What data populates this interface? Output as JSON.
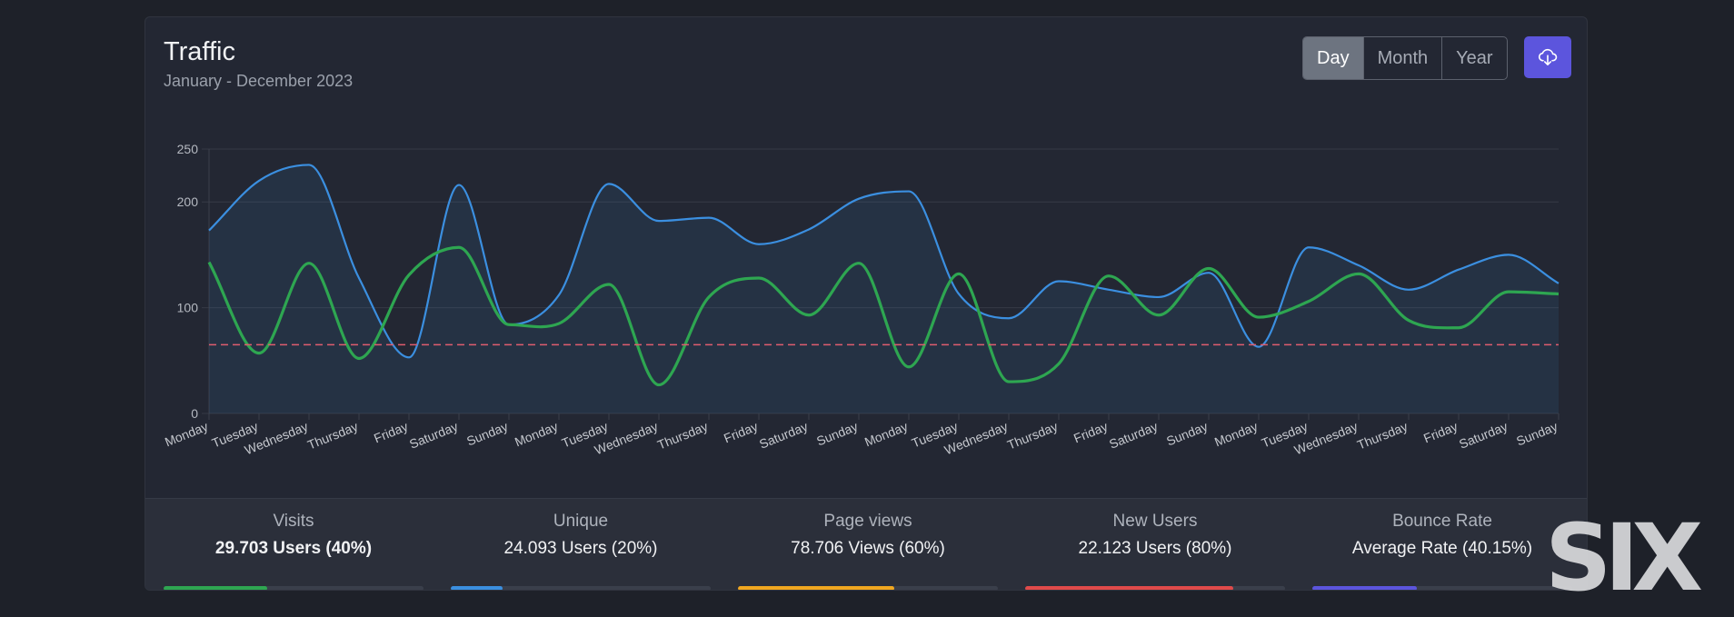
{
  "card": {
    "title": "Traffic",
    "subtitle": "January - December 2023"
  },
  "period_buttons": [
    {
      "label": "Day",
      "active": true
    },
    {
      "label": "Month",
      "active": false
    },
    {
      "label": "Year",
      "active": false
    }
  ],
  "download_button": {
    "icon": "cloud-download-icon"
  },
  "chart_data": {
    "type": "line",
    "categories": [
      "Monday",
      "Tuesday",
      "Wednesday",
      "Thursday",
      "Friday",
      "Saturday",
      "Sunday",
      "Monday",
      "Tuesday",
      "Wednesday",
      "Thursday",
      "Friday",
      "Saturday",
      "Sunday",
      "Monday",
      "Tuesday",
      "Wednesday",
      "Thursday",
      "Friday",
      "Saturday",
      "Sunday",
      "Monday",
      "Tuesday",
      "Wednesday",
      "Thursday",
      "Friday",
      "Saturday",
      "Sunday"
    ],
    "yticks": [
      0,
      100,
      200,
      250
    ],
    "ylim": [
      0,
      250
    ],
    "grid": true,
    "series": [
      {
        "key": "blue",
        "color": "#3b8fe0",
        "fill": "rgba(59,143,224,0.10)",
        "values": [
          173,
          220,
          235,
          128,
          53,
          216,
          84,
          112,
          217,
          182,
          185,
          160,
          174,
          203,
          210,
          113,
          90,
          125,
          117,
          110,
          133,
          63,
          157,
          140,
          117,
          136,
          150,
          123
        ]
      },
      {
        "key": "green",
        "color": "#2ea651",
        "fill": "none",
        "values": [
          143,
          57,
          142,
          52,
          131,
          157,
          84,
          85,
          122,
          27,
          110,
          128,
          93,
          142,
          44,
          132,
          30,
          47,
          130,
          93,
          137,
          91,
          106,
          132,
          88,
          81,
          115,
          113
        ]
      },
      {
        "key": "threshold",
        "color": "#e05c6e",
        "dashed": true,
        "values": [
          65,
          65,
          65,
          65,
          65,
          65,
          65,
          65,
          65,
          65,
          65,
          65,
          65,
          65,
          65,
          65,
          65,
          65,
          65,
          65,
          65,
          65,
          65,
          65,
          65,
          65,
          65,
          65
        ]
      }
    ]
  },
  "stats": [
    {
      "label": "Visits",
      "value": "29.703 Users (40%)",
      "percent": 40,
      "color": "#2ea651",
      "bold": true
    },
    {
      "label": "Unique",
      "value": "24.093 Users (20%)",
      "percent": 20,
      "color": "#3b8fe0",
      "bold": false
    },
    {
      "label": "Page views",
      "value": "78.706 Views (60%)",
      "percent": 60,
      "color": "#f0a720",
      "bold": false
    },
    {
      "label": "New Users",
      "value": "22.123 Users (80%)",
      "percent": 80,
      "color": "#e04a4a",
      "bold": false
    },
    {
      "label": "Bounce Rate",
      "value": "Average Rate (40.15%)",
      "percent": 40.15,
      "color": "#5c55dd",
      "bold": false
    }
  ],
  "watermark": {
    "text": "SIX"
  }
}
